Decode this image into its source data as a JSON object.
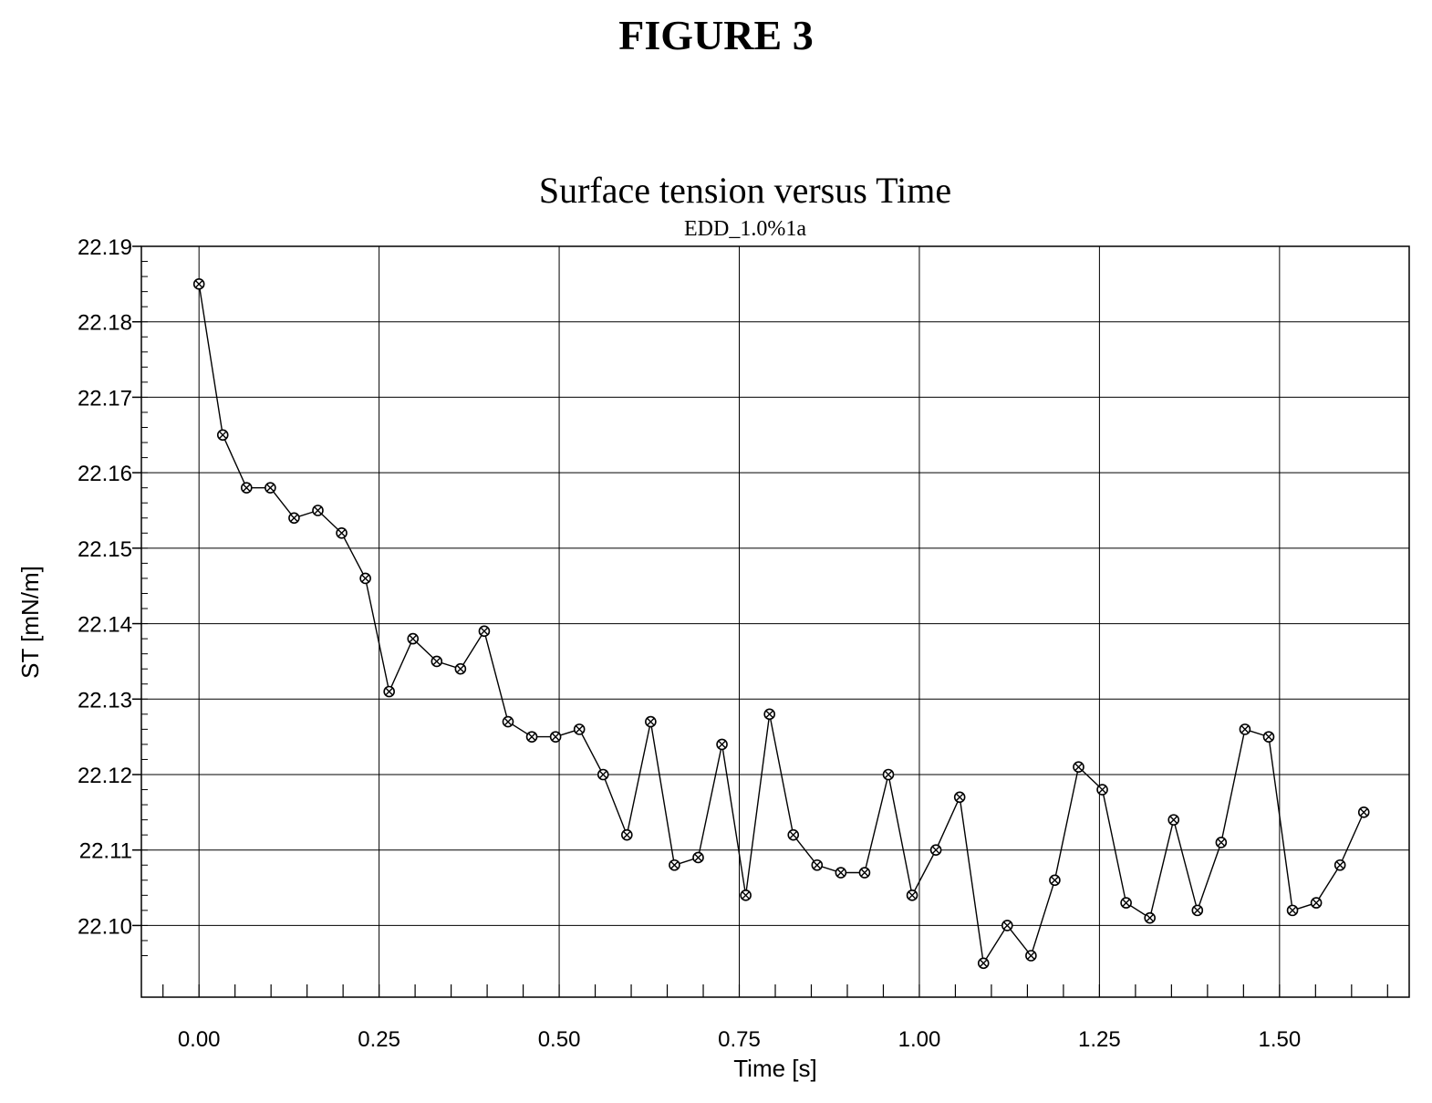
{
  "figure_label": "FIGURE 3",
  "chart_data": {
    "type": "line",
    "title": "Surface tension versus Time",
    "subtitle": "EDD_1.0%1a",
    "xlabel": "Time [s]",
    "ylabel": "ST [mN/m]",
    "xlim": [
      -0.08,
      1.68
    ],
    "ylim": [
      22.0905,
      22.19
    ],
    "xticks": [
      0.0,
      0.25,
      0.5,
      0.75,
      1.0,
      1.25,
      1.5
    ],
    "xtick_labels": [
      "0.00",
      "0.25",
      "0.50",
      "0.75",
      "1.00",
      "1.25",
      "1.50"
    ],
    "yticks": [
      22.1,
      22.11,
      22.12,
      22.13,
      22.14,
      22.15,
      22.16,
      22.17,
      22.18,
      22.19
    ],
    "ytick_labels": [
      "22.10",
      "22.11",
      "22.12",
      "22.13",
      "22.14",
      "22.15",
      "22.16",
      "22.17",
      "22.18",
      "22.19"
    ],
    "grid": true,
    "line_color": "#000000",
    "marker": "circle-cross",
    "series": [
      {
        "x": [
          0.0,
          0.033,
          0.066,
          0.099,
          0.132,
          0.165,
          0.198,
          0.231,
          0.264,
          0.297,
          0.33,
          0.363,
          0.396,
          0.429,
          0.462,
          0.495,
          0.528,
          0.561,
          0.594,
          0.627,
          0.66,
          0.693,
          0.726,
          0.759,
          0.792,
          0.825,
          0.858,
          0.891,
          0.924,
          0.957,
          0.99,
          1.023,
          1.056,
          1.089,
          1.122,
          1.155,
          1.188,
          1.221,
          1.254,
          1.287,
          1.32,
          1.353,
          1.386,
          1.419,
          1.452,
          1.485,
          1.518,
          1.551,
          1.584,
          1.617
        ],
        "y": [
          22.185,
          22.165,
          22.158,
          22.158,
          22.154,
          22.155,
          22.152,
          22.146,
          22.131,
          22.138,
          22.135,
          22.134,
          22.139,
          22.127,
          22.125,
          22.125,
          22.126,
          22.12,
          22.112,
          22.127,
          22.108,
          22.109,
          22.124,
          22.104,
          22.128,
          22.112,
          22.108,
          22.107,
          22.107,
          22.12,
          22.104,
          22.11,
          22.117,
          22.095,
          22.1,
          22.096,
          22.106,
          22.121,
          22.118,
          22.103,
          22.101,
          22.114,
          22.102,
          22.111,
          22.126,
          22.125,
          22.102,
          22.103,
          22.108,
          22.115
        ]
      }
    ]
  }
}
